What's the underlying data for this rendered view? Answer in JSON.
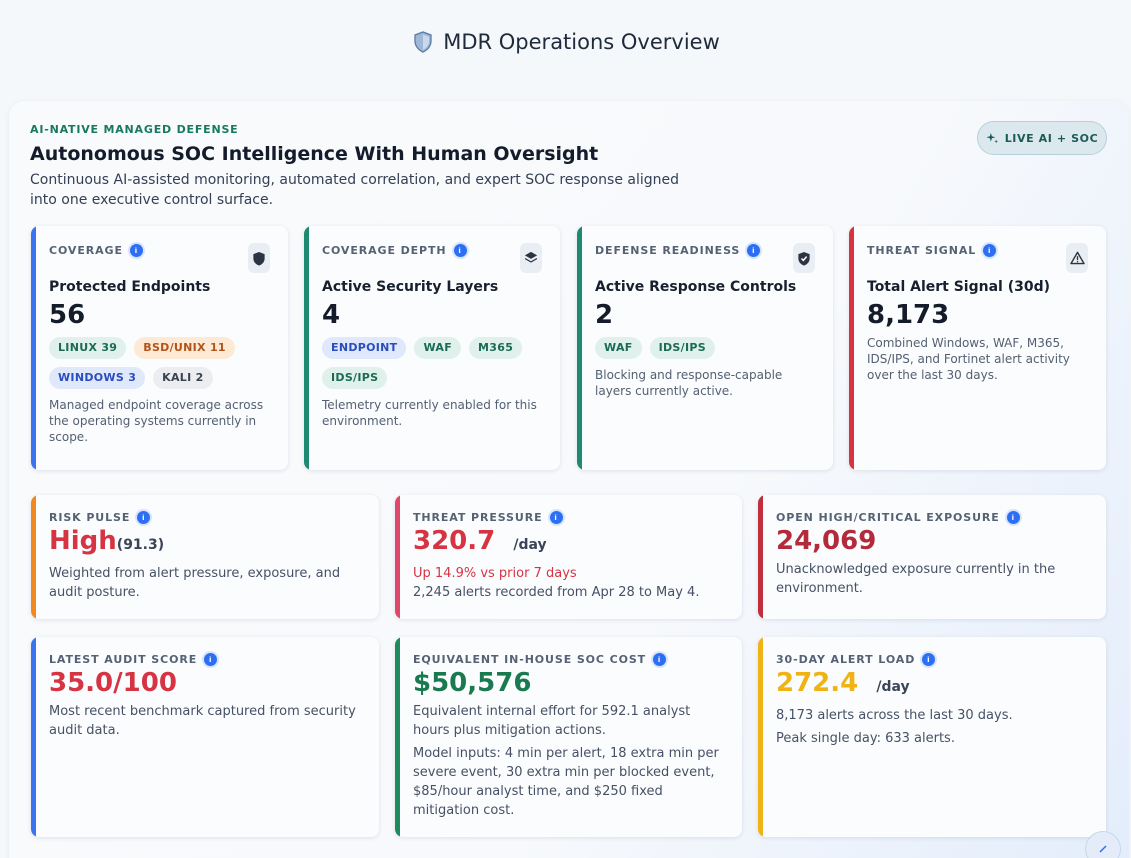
{
  "header": {
    "title": "MDR Operations Overview",
    "icon": "shield-icon"
  },
  "hero": {
    "eyebrow": "AI-NATIVE MANAGED DEFENSE",
    "title": "Autonomous SOC Intelligence With Human Oversight",
    "subtitle": "Continuous AI-assisted monitoring, automated correlation, and expert SOC response aligned into one executive control surface.",
    "pill": "LIVE AI + SOC"
  },
  "colors": {
    "blue_bar": "#3b73f0",
    "teal_bar": "#1f8a72",
    "red_bar": "#d6353f",
    "orange_bar": "#f08a1e",
    "pink_bar": "#e0476a",
    "crimson_bar": "#c0303c",
    "green_bar": "#1f8a5c",
    "amber_bar": "#f0b315"
  },
  "cards": [
    {
      "label": "COVERAGE",
      "icon": "shield-icon",
      "title": "Protected Endpoints",
      "value": "56",
      "tags": [
        "LINUX 39",
        "BSD/UNIX 11",
        "WINDOWS 3",
        "KALI 2"
      ],
      "desc": "Managed endpoint coverage across the operating systems currently in scope."
    },
    {
      "label": "COVERAGE DEPTH",
      "icon": "layers-icon",
      "title": "Active Security Layers",
      "value": "4",
      "tags": [
        "ENDPOINT",
        "WAF",
        "M365",
        "IDS/IPS"
      ],
      "desc": "Telemetry currently enabled for this environment."
    },
    {
      "label": "DEFENSE READINESS",
      "icon": "shield-check-icon",
      "title": "Active Response Controls",
      "value": "2",
      "tags": [
        "WAF",
        "IDS/IPS"
      ],
      "desc": "Blocking and response-capable layers currently active."
    },
    {
      "label": "THREAT SIGNAL",
      "icon": "warning-icon",
      "title": "Total Alert Signal (30d)",
      "value": "8,173",
      "desc": "Combined Windows, WAF, M365, IDS/IPS, and Fortinet alert activity over the last 30 days."
    }
  ],
  "metrics": [
    {
      "label": "RISK PULSE",
      "value": "High",
      "value_suffix": "(91.3)",
      "desc": "Weighted from alert pressure, exposure, and audit posture."
    },
    {
      "label": "THREAT PRESSURE",
      "value": "320.7",
      "unit": "/day",
      "change": "Up 14.9% vs prior 7 days",
      "desc": "2,245 alerts recorded from Apr 28 to May 4."
    },
    {
      "label": "OPEN HIGH/CRITICAL EXPOSURE",
      "value": "24,069",
      "desc": "Unacknowledged exposure currently in the environment."
    },
    {
      "label": "LATEST AUDIT SCORE",
      "value": "35.0/100",
      "desc": "Most recent benchmark captured from security audit data."
    },
    {
      "label": "EQUIVALENT IN-HOUSE SOC COST",
      "value": "$50,576",
      "desc": "Equivalent internal effort for 592.1 analyst hours plus mitigation actions.",
      "desc2": "Model inputs: 4 min per alert, 18 extra min per severe event, 30 extra min per blocked event, $85/hour analyst time, and $250 fixed mitigation cost."
    },
    {
      "label": "30-DAY ALERT LOAD",
      "value": "272.4",
      "unit": "/day",
      "desc": "8,173 alerts across the last 30 days.",
      "desc2": "Peak single day: 633 alerts."
    }
  ]
}
